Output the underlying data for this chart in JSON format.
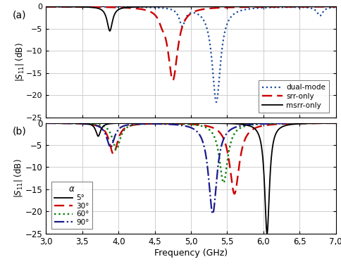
{
  "xlim": [
    3.0,
    7.0
  ],
  "ylim": [
    -25,
    0
  ],
  "xlabel": "Frequency (GHz)",
  "xticks": [
    3.0,
    3.5,
    4.0,
    4.5,
    5.0,
    5.5,
    6.0,
    6.5,
    7.0
  ],
  "xticklabels": [
    "3,0",
    "3,5",
    "4,0",
    "4,5",
    "5,0",
    "5,5",
    "6,0",
    "6,5",
    "7,0"
  ],
  "yticks": [
    0,
    -5,
    -10,
    -15,
    -20,
    -25
  ],
  "color_blue": "#1a4b9b",
  "color_red": "#cc0000",
  "color_black": "#000000",
  "color_green": "#008000",
  "color_darkblue": "#1a1a8c",
  "grid_color": "#c8c8c8",
  "background": "#ffffff"
}
